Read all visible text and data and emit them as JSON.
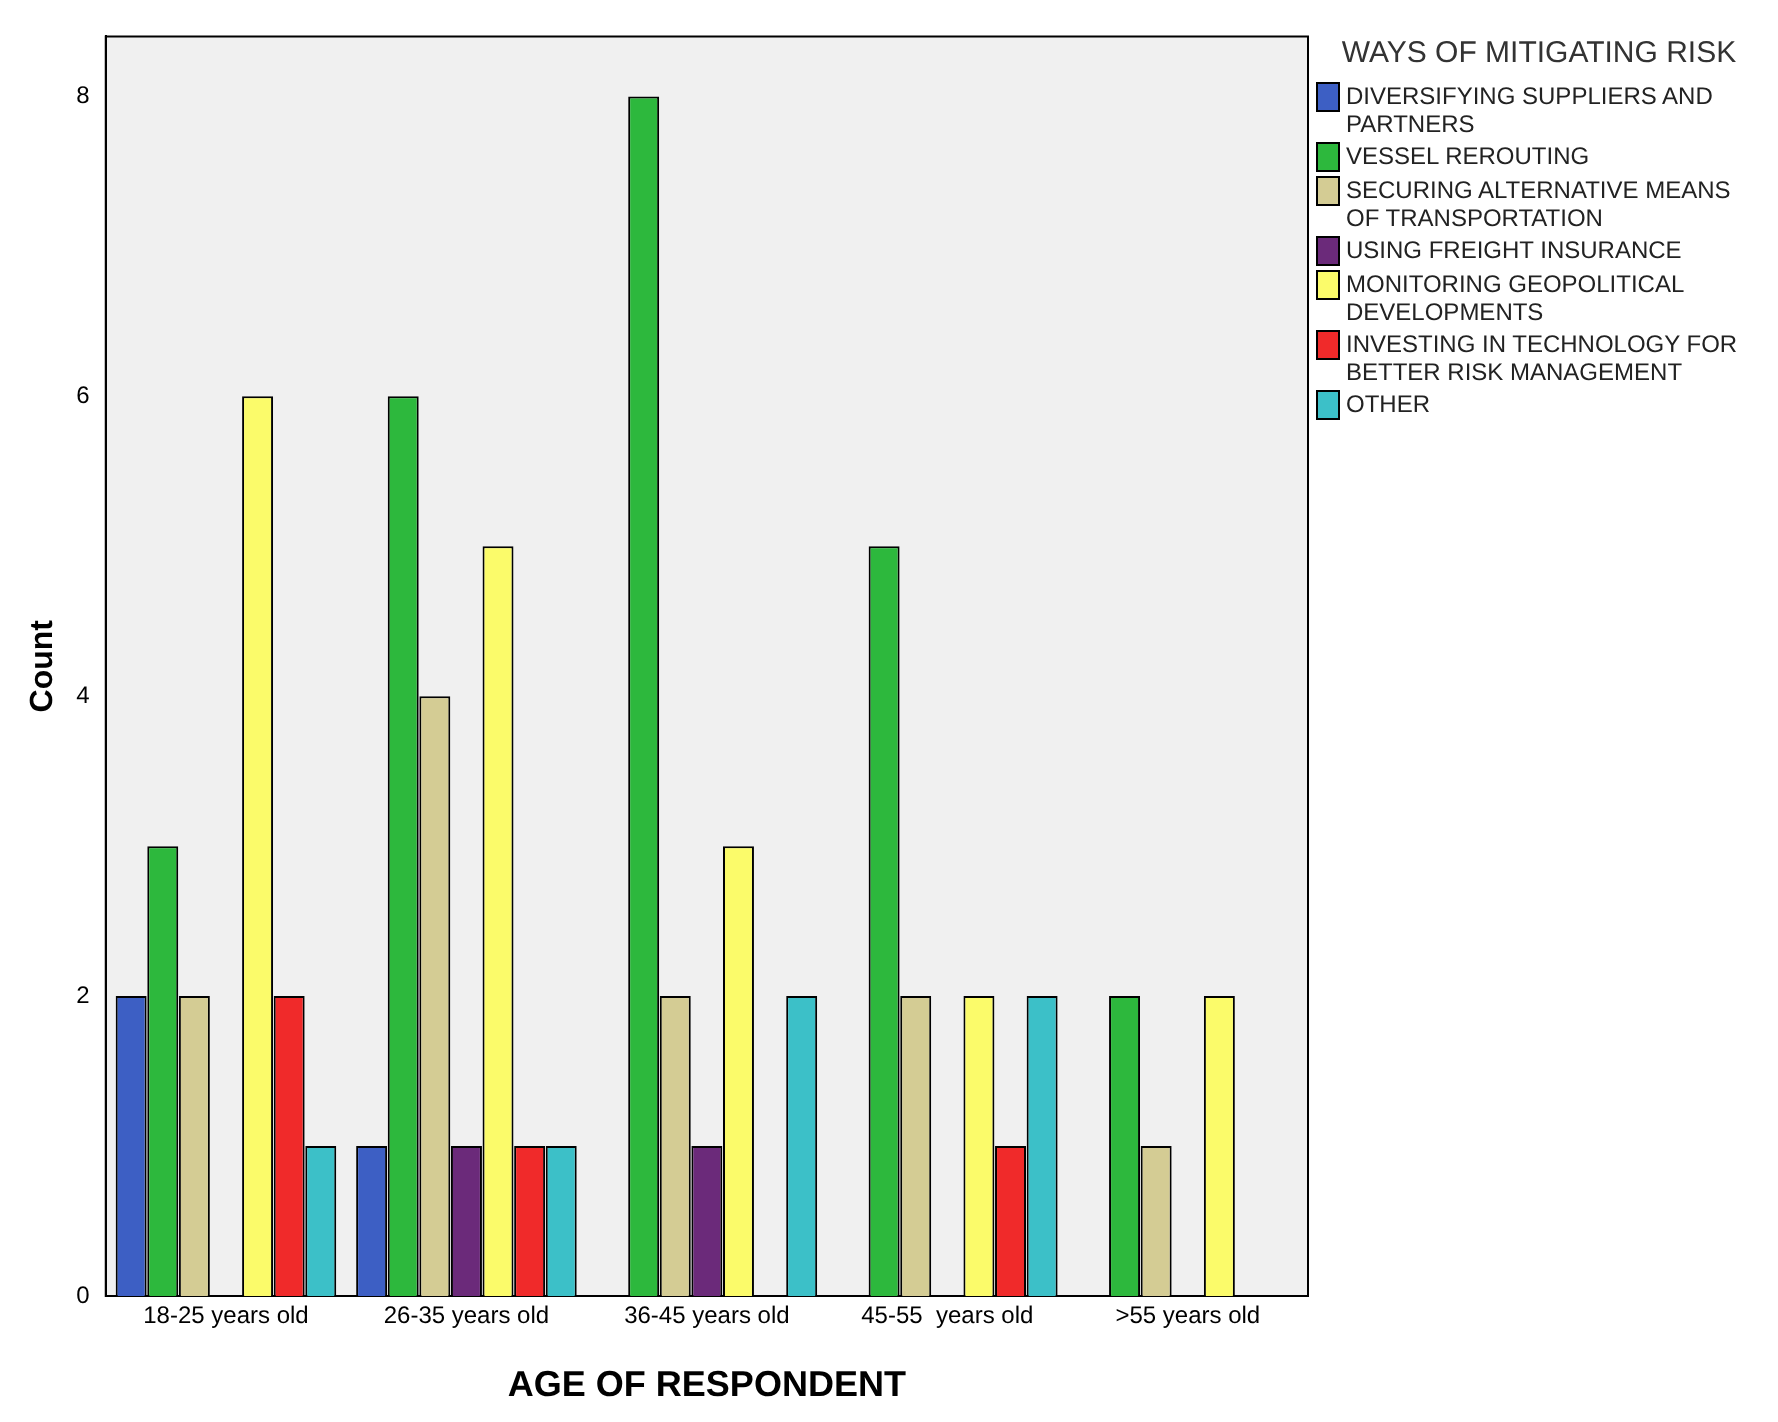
{
  "chart_data": {
    "type": "bar",
    "xlabel": "AGE OF RESPONDENT",
    "ylabel": "Count",
    "legend_title": "WAYS OF MITIGATING RISK",
    "legend": "right",
    "grid": false,
    "categories": [
      "18-25 years old",
      "26-35 years old",
      "36-45 years old",
      "45-55  years old",
      ">55 years old"
    ],
    "ylim": [
      0,
      8.4
    ],
    "yticks": [
      0,
      2,
      4,
      6,
      8
    ],
    "series": [
      {
        "name": "DIVERSIFYING SUPPLIERS AND PARTNERS",
        "color": "#3d5fc4",
        "values": [
          2,
          1,
          0,
          0,
          0
        ]
      },
      {
        "name": "VESSEL REROUTING",
        "color": "#2db83d",
        "values": [
          3,
          6,
          8,
          5,
          2
        ]
      },
      {
        "name": "SECURING ALTERNATIVE MEANS OF TRANSPORTATION",
        "color": "#d4cc94",
        "values": [
          2,
          4,
          2,
          2,
          1
        ]
      },
      {
        "name": "USING FREIGHT INSURANCE",
        "color": "#6b2a7a",
        "values": [
          0,
          1,
          1,
          0,
          0
        ]
      },
      {
        "name": "MONITORING GEOPOLITICAL DEVELOPMENTS",
        "color": "#fbfb6a",
        "values": [
          6,
          5,
          3,
          2,
          2
        ]
      },
      {
        "name": "INVESTING IN TECHNOLOGY FOR BETTER RISK MANAGEMENT",
        "color": "#f02a2a",
        "values": [
          2,
          1,
          0,
          1,
          0
        ]
      },
      {
        "name": "OTHER",
        "color": "#3cc0c8",
        "values": [
          1,
          1,
          2,
          2,
          0
        ]
      }
    ]
  }
}
